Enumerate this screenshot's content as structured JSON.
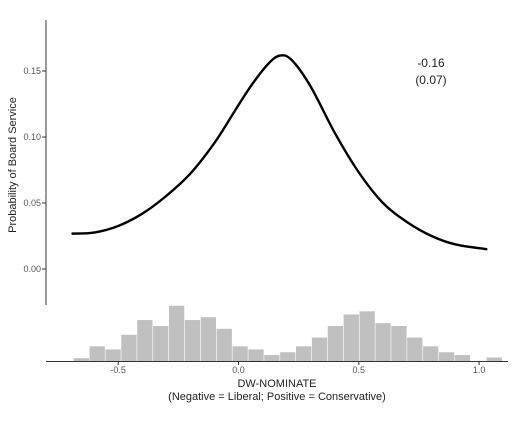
{
  "chart_data": {
    "type": "line",
    "xlabel": "DW-NOMINATE",
    "xlabel_note": "(Negative = Liberal; Positive = Conservative)",
    "ylabel": "Probability of Board Service",
    "xlim": [
      -0.8,
      1.12
    ],
    "ylim": [
      0.0,
      0.18
    ],
    "x_ticks": [
      {
        "value": -0.5,
        "label": "-0.5"
      },
      {
        "value": 0.0,
        "label": "0.0"
      },
      {
        "value": 0.5,
        "label": "0.5"
      },
      {
        "value": 1.0,
        "label": "1.0"
      }
    ],
    "y_ticks": [
      {
        "value": 0.0,
        "label": "0.00"
      },
      {
        "value": 0.05,
        "label": "0.05"
      },
      {
        "value": 0.1,
        "label": "0.10"
      },
      {
        "value": 0.15,
        "label": "0.15"
      }
    ],
    "grid": false,
    "series": [
      {
        "color": "#000000",
        "x": [
          -0.69,
          -0.6,
          -0.5,
          -0.4,
          -0.3,
          -0.2,
          -0.1,
          -0.02,
          0.05,
          0.12,
          0.17,
          0.22,
          0.3,
          0.4,
          0.5,
          0.6,
          0.7,
          0.8,
          0.9,
          1.03
        ],
        "y": [
          0.0268,
          0.0276,
          0.0326,
          0.0419,
          0.0554,
          0.0723,
          0.0955,
          0.1184,
          0.1382,
          0.1547,
          0.1616,
          0.1585,
          0.1382,
          0.1032,
          0.0732,
          0.0501,
          0.0356,
          0.0252,
          0.0187,
          0.015
        ]
      }
    ],
    "annotation": {
      "x": 0.8,
      "estimate": "-0.16",
      "std_error": "(0.07)"
    },
    "histogram": {
      "color": "#c0c0c0",
      "bin_width": 0.066,
      "bins": [
        {
          "x": -0.685,
          "density": 0.08
        },
        {
          "x": -0.619,
          "density": 0.42
        },
        {
          "x": -0.553,
          "density": 0.33
        },
        {
          "x": -0.487,
          "density": 0.75
        },
        {
          "x": -0.421,
          "density": 1.17
        },
        {
          "x": -0.355,
          "density": 1.0
        },
        {
          "x": -0.289,
          "density": 1.58
        },
        {
          "x": -0.223,
          "density": 1.17
        },
        {
          "x": -0.157,
          "density": 1.25
        },
        {
          "x": -0.091,
          "density": 0.92
        },
        {
          "x": -0.025,
          "density": 0.42
        },
        {
          "x": 0.041,
          "density": 0.33
        },
        {
          "x": 0.107,
          "density": 0.17
        },
        {
          "x": 0.173,
          "density": 0.25
        },
        {
          "x": 0.239,
          "density": 0.42
        },
        {
          "x": 0.305,
          "density": 0.67
        },
        {
          "x": 0.371,
          "density": 1.0
        },
        {
          "x": 0.437,
          "density": 1.33
        },
        {
          "x": 0.503,
          "density": 1.42
        },
        {
          "x": 0.569,
          "density": 1.08
        },
        {
          "x": 0.635,
          "density": 1.0
        },
        {
          "x": 0.701,
          "density": 0.67
        },
        {
          "x": 0.767,
          "density": 0.42
        },
        {
          "x": 0.833,
          "density": 0.25
        },
        {
          "x": 0.899,
          "density": 0.17
        },
        {
          "x": 0.965,
          "density": 0.0
        },
        {
          "x": 1.031,
          "density": 0.1
        }
      ]
    }
  }
}
